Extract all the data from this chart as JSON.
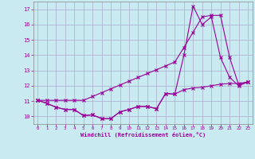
{
  "xlabel": "Windchill (Refroidissement éolien,°C)",
  "background_color": "#c8eaf0",
  "grid_color": "#aaaacc",
  "line_color": "#990099",
  "xlim": [
    -0.5,
    23.5
  ],
  "ylim": [
    9.5,
    17.5
  ],
  "xticks": [
    0,
    1,
    2,
    3,
    4,
    5,
    6,
    7,
    8,
    9,
    10,
    11,
    12,
    13,
    14,
    15,
    16,
    17,
    18,
    19,
    20,
    21,
    22,
    23
  ],
  "yticks": [
    10,
    11,
    12,
    13,
    14,
    15,
    16,
    17
  ],
  "line1_x": [
    0,
    1,
    2,
    3,
    4,
    5,
    6,
    7,
    8,
    9,
    10,
    11,
    12,
    13,
    14,
    15,
    16,
    17,
    18,
    19,
    20,
    21,
    22,
    23
  ],
  "line1_y": [
    11.05,
    10.85,
    10.6,
    10.45,
    10.45,
    10.05,
    10.1,
    9.85,
    9.85,
    10.3,
    10.45,
    10.65,
    10.65,
    10.5,
    11.5,
    11.45,
    14.0,
    17.2,
    16.0,
    16.5,
    13.85,
    12.55,
    12.0,
    12.25
  ],
  "line2_x": [
    0,
    1,
    2,
    3,
    4,
    5,
    6,
    7,
    8,
    9,
    10,
    11,
    12,
    13,
    14,
    15,
    16,
    17,
    18,
    19,
    20,
    21,
    22,
    23
  ],
  "line2_y": [
    11.05,
    11.05,
    11.05,
    11.05,
    11.05,
    11.05,
    11.3,
    11.55,
    11.8,
    12.05,
    12.3,
    12.55,
    12.8,
    13.05,
    13.3,
    13.55,
    14.5,
    15.5,
    16.5,
    16.6,
    16.6,
    13.85,
    12.05,
    12.25
  ],
  "line3_x": [
    0,
    1,
    2,
    3,
    4,
    5,
    6,
    7,
    8,
    9,
    10,
    11,
    12,
    13,
    14,
    15,
    16,
    17,
    18,
    19,
    20,
    21,
    22,
    23
  ],
  "line3_y": [
    11.05,
    10.85,
    10.6,
    10.45,
    10.45,
    10.05,
    10.1,
    9.85,
    9.85,
    10.3,
    10.45,
    10.65,
    10.65,
    10.5,
    11.5,
    11.45,
    11.75,
    11.85,
    11.9,
    12.0,
    12.1,
    12.15,
    12.15,
    12.25
  ]
}
